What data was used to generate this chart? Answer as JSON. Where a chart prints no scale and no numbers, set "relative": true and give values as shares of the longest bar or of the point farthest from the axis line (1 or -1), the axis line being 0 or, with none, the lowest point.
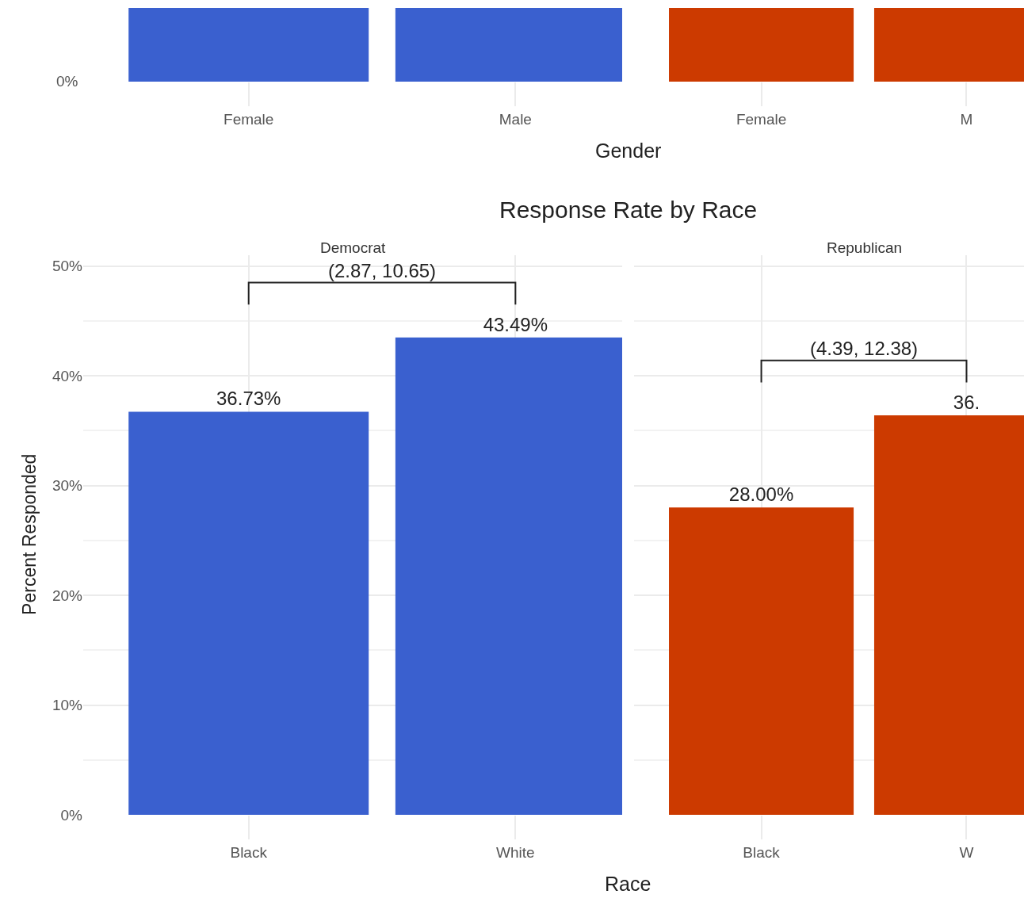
{
  "chart_data": [
    {
      "type": "bar",
      "categories": [
        "Female",
        "Male"
      ],
      "values": [
        1,
        1
      ],
      "relative": true,
      "color": "#3a60cf",
      "xlabel": "Gender",
      "annotations": [
        "0%"
      ]
    },
    {
      "type": "bar",
      "categories": [
        "Female",
        "M"
      ],
      "values": [
        1,
        1
      ],
      "relative": true,
      "color": "#cc3a00"
    },
    {
      "type": "bar",
      "title": "Response Rate by Race",
      "subtitle": "Democrat",
      "categories": [
        "Black",
        "White"
      ],
      "values": [
        36.73,
        43.49
      ],
      "value_labels": [
        "36.73%",
        "43.49%"
      ],
      "color": "#3a60cf",
      "ylabel": "Percent Responded",
      "xlabel": "Race",
      "ylim": [
        0,
        51
      ],
      "yticks": [
        {
          "value": 0,
          "label": "0%"
        },
        {
          "value": 10,
          "label": "10%"
        },
        {
          "value": 20,
          "label": "20%"
        },
        {
          "value": 30,
          "label": "30%"
        },
        {
          "value": 40,
          "label": "40%"
        },
        {
          "value": 50,
          "label": "50%"
        }
      ],
      "grid": true,
      "annotations": [
        "(2.87, 10.65)"
      ]
    },
    {
      "type": "bar",
      "subtitle": "Republican",
      "categories": [
        "Black",
        "W"
      ],
      "values": [
        28.0,
        36.4
      ],
      "value_labels": [
        "28.00%",
        "36."
      ],
      "color": "#cc3a00",
      "ylim": [
        0,
        51
      ],
      "yticks": [
        0,
        10,
        20,
        30,
        40,
        50
      ],
      "tick_labels": "x",
      "grid": true,
      "annotations": [
        "(4.39, 12.38)"
      ]
    }
  ]
}
